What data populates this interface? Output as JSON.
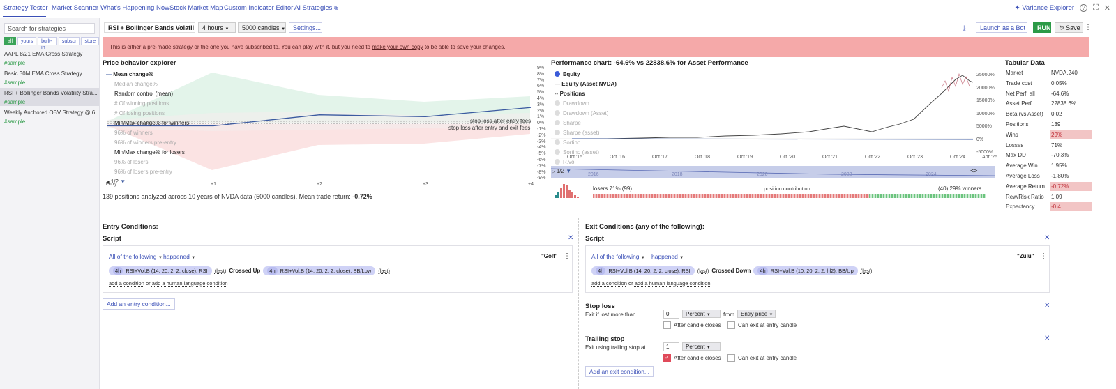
{
  "nav": {
    "tabs": [
      "Strategy Tester",
      "Market Scanner",
      "What's Happening Now",
      "Stock Market Map",
      "Custom Indicator Editor",
      "AI Strategies"
    ],
    "variance_explorer": "Variance Explorer"
  },
  "sidebar": {
    "search_placeholder": "Search for strategies",
    "filters": [
      "all",
      "yours",
      "built-in",
      "subscr",
      "store"
    ],
    "items": [
      {
        "name": "AAPL 8/21 EMA Cross Strategy",
        "tag": "#sample"
      },
      {
        "name": "Basic 30M EMA Cross Strategy",
        "tag": "#sample"
      },
      {
        "name": "RSI + Bollinger Bands Volatility Stra...",
        "tag": "#sample"
      },
      {
        "name": "Weekly Anchored OBV Strategy @ 6...",
        "tag": "#sample"
      }
    ]
  },
  "strategy_bar": {
    "name": "RSI + Bollinger Bands Volatil",
    "timeframe": "4 hours",
    "candles": "5000 candles",
    "settings": "Settings...",
    "launch": "Launch as a Bot",
    "run": "RUN",
    "save": "Save"
  },
  "banner": {
    "pre": "This is either a pre-made strategy or the one you have subscribed to. You can play with it, but you need to ",
    "link": "make your own copy",
    "post": " to be able to save your changes."
  },
  "price_behavior": {
    "title": "Price behavior explorer",
    "legend": [
      "Mean change%",
      "Median change%",
      "Random control (mean)",
      "# Of winning positions",
      "# Of losing positions",
      "Min/Max change% for winners",
      "96% of winners",
      "96% of winners pre-entry",
      "Min/Max change% for losers",
      "96% of losers",
      "96% of losers pre-entry"
    ],
    "stop_loss_1": "stop loss after entry fees",
    "stop_loss_2": "stop loss after entry and exit fees",
    "y_ticks": [
      "9%",
      "8%",
      "7%",
      "6%",
      "5%",
      "4%",
      "3%",
      "2%",
      "1%",
      "0%",
      "-1%",
      "-2%",
      "-3%",
      "-4%",
      "-5%",
      "-6%",
      "-7%",
      "-8%",
      "-9%"
    ],
    "x_ticks": [
      "entry",
      "+1",
      "+2",
      "+3",
      "+4"
    ],
    "pager": "1/2",
    "summary_pre": "139 positions analyzed across 10 years of NVDA data (5000 candles). Mean trade return: ",
    "summary_val": "-0.72%",
    "mean_series": [
      -0.4,
      -0.4,
      1.4,
      1.1,
      2.6
    ]
  },
  "performance": {
    "title": "Performance chart: -64.6% vs 22838.6% for Asset Performance",
    "legend": [
      "Equity",
      "Equity (Asset NVDA)",
      "Positions",
      "Drawdown",
      "Drawdown (Asset)",
      "Sharpe",
      "Sharpe (asset)",
      "Sortino",
      "Sortino (asset)",
      "R.vol"
    ],
    "y_ticks": [
      "25000%",
      "20000%",
      "15000%",
      "10000%",
      "5000%",
      "0%",
      "-5000%"
    ],
    "x_ticks": [
      "Oct '15",
      "Oct '16",
      "Oct '17",
      "Oct '18",
      "Oct '19",
      "Oct '20",
      "Oct '21",
      "Oct '22",
      "Oct '23",
      "Oct '24",
      "Apr '25"
    ],
    "nav_years": [
      "2016",
      "2018",
      "2020",
      "2022",
      "2024"
    ],
    "pager": "1/2",
    "losers": "losers 71% (99)",
    "contribution": "position contribution",
    "winners": "(40) 29% winners"
  },
  "tabular": {
    "title": "Tabular Data",
    "rows": [
      {
        "k": "Market",
        "v": "NVDA,240",
        "neg": false
      },
      {
        "k": "Trade cost",
        "v": "0.05%",
        "neg": false
      },
      {
        "k": "Net Perf. all",
        "v": "-64.6%",
        "neg": false
      },
      {
        "k": "Asset Perf.",
        "v": "22838.6%",
        "neg": false
      },
      {
        "k": "Beta (vs Asset)",
        "v": "0.02",
        "neg": false
      },
      {
        "k": "Positions",
        "v": "139",
        "neg": false
      },
      {
        "k": "Wins",
        "v": "29%",
        "neg": true
      },
      {
        "k": "Losses",
        "v": "71%",
        "neg": false
      },
      {
        "k": "Max DD",
        "v": "-70.3%",
        "neg": false
      },
      {
        "k": "Average Win",
        "v": "1.95%",
        "neg": false
      },
      {
        "k": "Average Loss",
        "v": "-1.80%",
        "neg": false
      },
      {
        "k": "Average Return",
        "v": "-0.72%",
        "neg": true
      },
      {
        "k": "Rew/Risk Ratio",
        "v": "1.09",
        "neg": false
      },
      {
        "k": "Expectancy",
        "v": "-0.4",
        "neg": true
      }
    ]
  },
  "entry": {
    "title": "Entry Conditions:",
    "script": "Script",
    "all_following": "All of the following",
    "happened": "happened",
    "name": "\"Golf\"",
    "tf1": "4h",
    "ind1": "RSI+Vol.B (14, 20, 2, 2, close), RSI",
    "last1": "(last)",
    "op": "Crossed Up",
    "tf2": "4h",
    "ind2": "RSI+Vol.B (14, 20, 2, 2, close), BB/Low",
    "last2": "(last)",
    "add_cond": "add a condition",
    "or": "or",
    "add_human": "add a human language condition",
    "add_button": "Add an entry condition..."
  },
  "exit": {
    "title": "Exit Conditions (any of the following):",
    "script": "Script",
    "all_following": "All of the following",
    "happened": "happened",
    "name": "\"Zulu\"",
    "tf1": "4h",
    "ind1": "RSI+Vol.B (14, 20, 2, 2, close), RSI",
    "last1": "(last)",
    "op": "Crossed Down",
    "tf2": "4h",
    "ind2": "RSI+Vol.B (10, 20, 2, 2, hl2), BB/Up",
    "last2": "(last)",
    "add_cond": "add a condition",
    "or": "or",
    "add_human": "add a human language condition",
    "stop_loss": {
      "title": "Stop loss",
      "label": "Exit if lost more than",
      "value": "0",
      "unit": "Percent",
      "from": "from",
      "ref": "Entry price",
      "after_close": "After candle closes",
      "can_exit": "Can exit at entry candle"
    },
    "trailing": {
      "title": "Trailing stop",
      "label": "Exit using trailing stop at",
      "value": "1",
      "unit": "Percent",
      "after_close": "After candle closes",
      "can_exit": "Can exit at entry candle"
    },
    "add_button": "Add an exit condition..."
  }
}
